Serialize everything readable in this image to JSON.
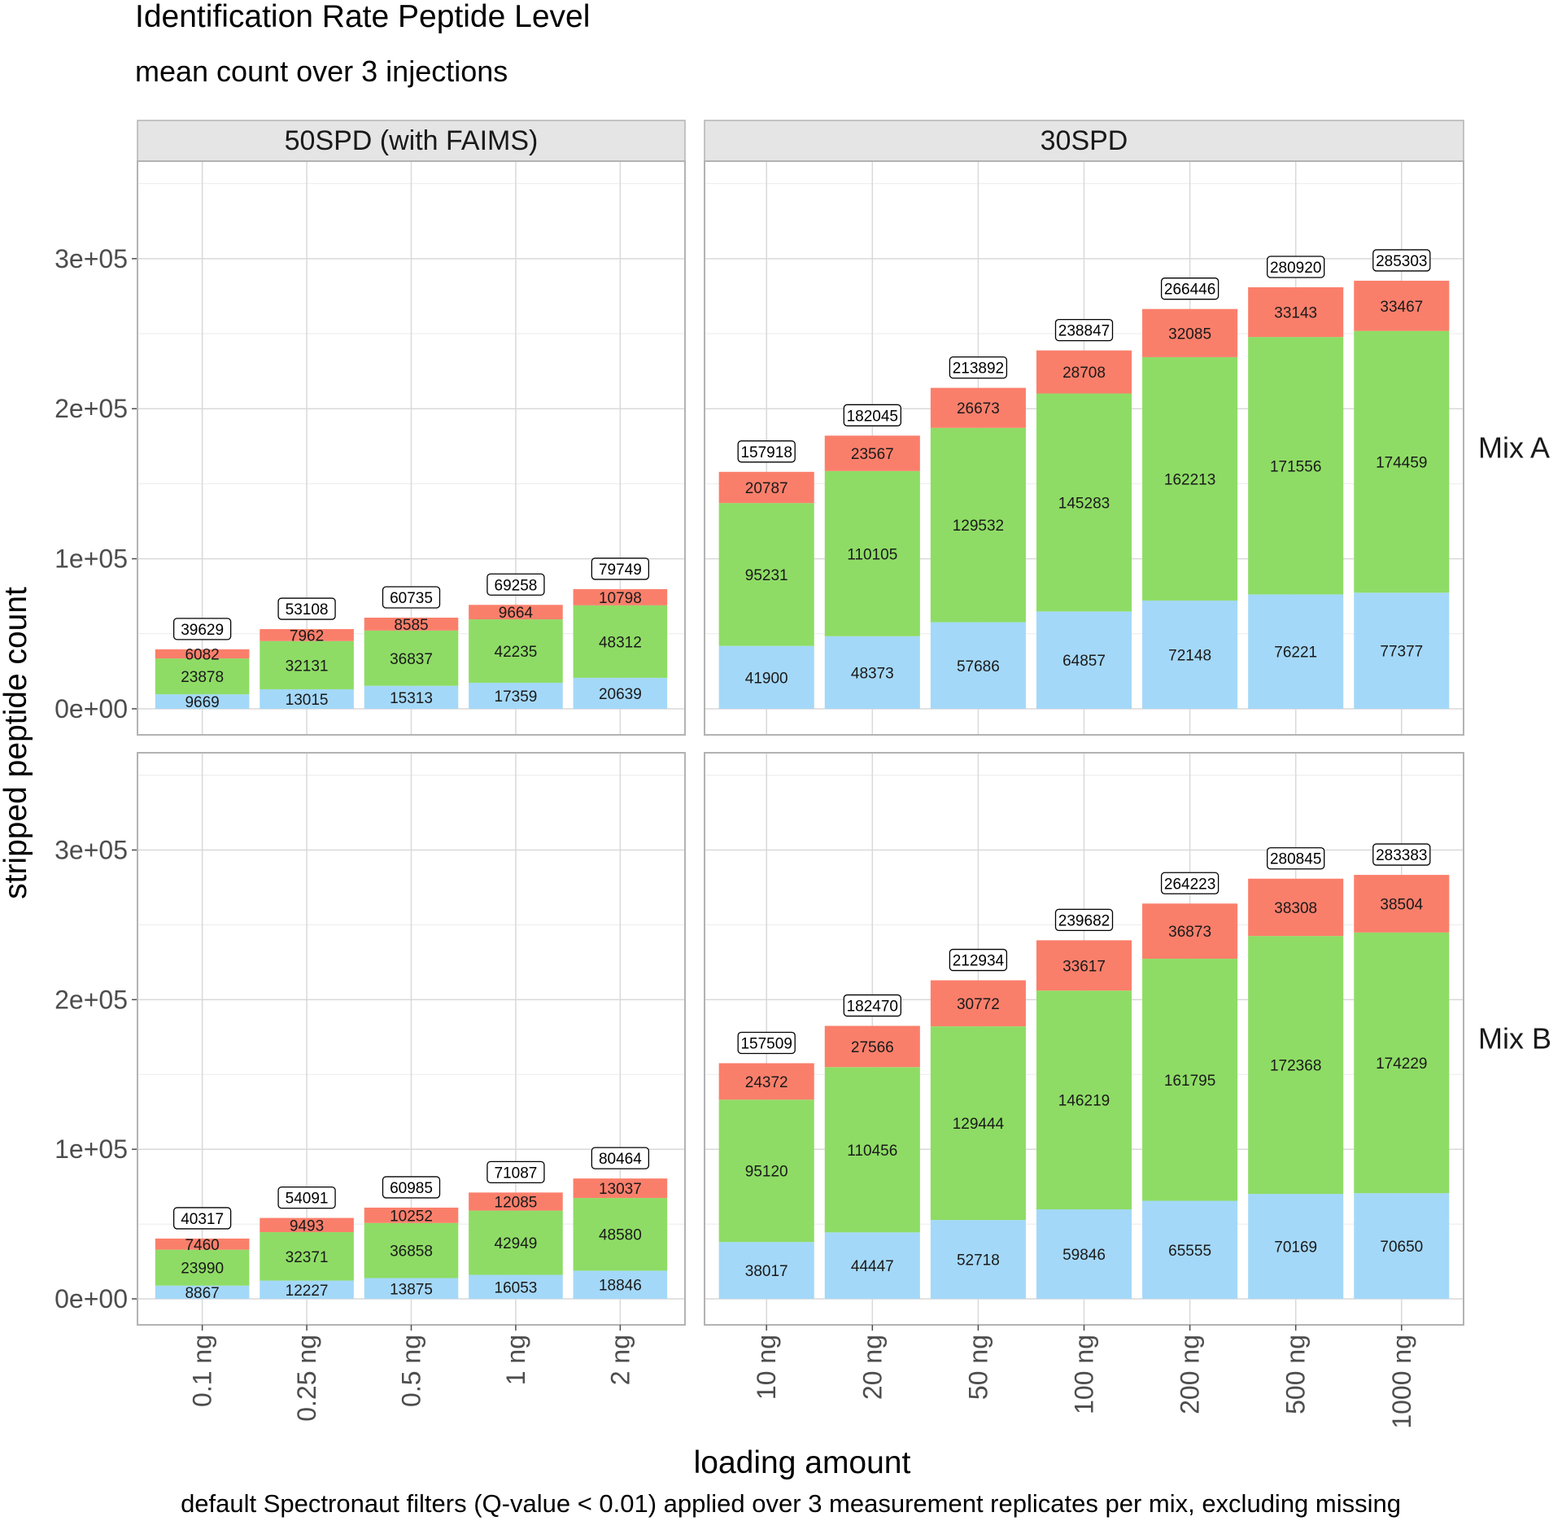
{
  "chart_data": {
    "type": "bar",
    "stacked": true,
    "title": "Identification Rate Peptide Level",
    "subtitle": "mean count over 3 injections",
    "xlabel": "loading amount",
    "ylabel": "stripped peptide count",
    "caption": "default Spectronaut filters (Q-value < 0.01) applied over 3 measurement replicates per mix, excluding missing",
    "ylim": [
      0,
      365000
    ],
    "yticks": [
      0,
      100000,
      200000,
      300000
    ],
    "ytick_labels": [
      "0e+00",
      "1e+05",
      "2e+05",
      "3e+05"
    ],
    "series_colors": [
      "#a4d8f8",
      "#8edc65",
      "#fa7f6b"
    ],
    "columns": [
      {
        "label": "50SPD (with FAIMS)",
        "categories": [
          "0.1 ng",
          "0.25 ng",
          "0.5 ng",
          "1 ng",
          "2 ng"
        ]
      },
      {
        "label": "30SPD",
        "categories": [
          "10 ng",
          "20 ng",
          "50 ng",
          "100 ng",
          "200 ng",
          "500 ng",
          "1000 ng"
        ]
      }
    ],
    "rows": [
      {
        "label": "Mix A",
        "panels": [
          {
            "segments": [
              [
                9669,
                23878,
                6082
              ],
              [
                13015,
                32131,
                7962
              ],
              [
                15313,
                36837,
                8585
              ],
              [
                17359,
                42235,
                9664
              ],
              [
                20639,
                48312,
                10798
              ]
            ],
            "totals": [
              39629,
              53108,
              60735,
              69258,
              79749
            ]
          },
          {
            "segments": [
              [
                41900,
                95231,
                20787
              ],
              [
                48373,
                110105,
                23567
              ],
              [
                57686,
                129532,
                26673
              ],
              [
                64857,
                145283,
                28708
              ],
              [
                72148,
                162213,
                32085
              ],
              [
                76221,
                171556,
                33143
              ],
              [
                77377,
                174459,
                33467
              ]
            ],
            "totals": [
              157918,
              182045,
              213892,
              238847,
              266446,
              280920,
              285303
            ]
          }
        ]
      },
      {
        "label": "Mix B",
        "panels": [
          {
            "segments": [
              [
                8867,
                23990,
                7460
              ],
              [
                12227,
                32371,
                9493
              ],
              [
                13875,
                36858,
                10252
              ],
              [
                16053,
                42949,
                12085
              ],
              [
                18846,
                48580,
                13037
              ]
            ],
            "totals": [
              40317,
              54091,
              60985,
              71087,
              80464
            ]
          },
          {
            "segments": [
              [
                38017,
                95120,
                24372
              ],
              [
                44447,
                110456,
                27566
              ],
              [
                52718,
                129444,
                30772
              ],
              [
                59846,
                146219,
                33617
              ],
              [
                65555,
                161795,
                36873
              ],
              [
                70169,
                172368,
                38308
              ],
              [
                70650,
                174229,
                38504
              ]
            ],
            "totals": [
              157509,
              182470,
              212934,
              239682,
              264223,
              280845,
              283383
            ]
          }
        ]
      }
    ]
  }
}
